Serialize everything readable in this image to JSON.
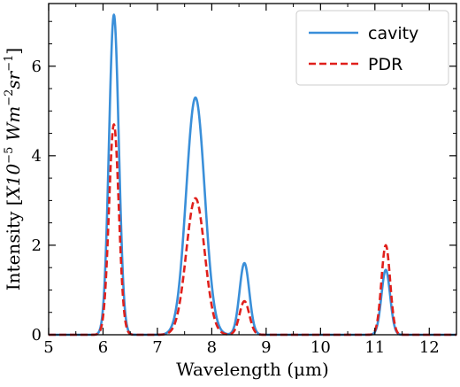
{
  "chart_data": {
    "type": "line",
    "xlabel": "Wavelength (μm)",
    "ylabel_parts": {
      "prefix": "Intensity [",
      "scale_base": "X10",
      "scale_exp": "−5",
      "unit_w": " Wm",
      "unit_w_exp": "−2",
      "unit_sr": "sr",
      "unit_sr_exp": "−1",
      "suffix": "]"
    },
    "xlim": [
      5,
      12.5
    ],
    "ylim": [
      0,
      7.4
    ],
    "xticks": [
      5,
      6,
      7,
      8,
      9,
      10,
      11,
      12
    ],
    "yticks": [
      0,
      2,
      4,
      6
    ],
    "grid": false,
    "legend_position": "top-right",
    "series": [
      {
        "name": "cavity",
        "color": "#3a8fd9",
        "style": "solid",
        "peaks": [
          {
            "center": 6.2,
            "amplitude": 7.15,
            "sigma": 0.09
          },
          {
            "center": 7.7,
            "amplitude": 5.3,
            "sigma": 0.17
          },
          {
            "center": 8.6,
            "amplitude": 1.6,
            "sigma": 0.09
          },
          {
            "center": 11.2,
            "amplitude": 1.45,
            "sigma": 0.08
          }
        ]
      },
      {
        "name": "PDR",
        "color": "#e0201c",
        "style": "dashed",
        "peaks": [
          {
            "center": 6.2,
            "amplitude": 4.7,
            "sigma": 0.09
          },
          {
            "center": 7.7,
            "amplitude": 3.05,
            "sigma": 0.17
          },
          {
            "center": 8.6,
            "amplitude": 0.75,
            "sigma": 0.09
          },
          {
            "center": 11.2,
            "amplitude": 2.0,
            "sigma": 0.08
          }
        ]
      }
    ]
  }
}
